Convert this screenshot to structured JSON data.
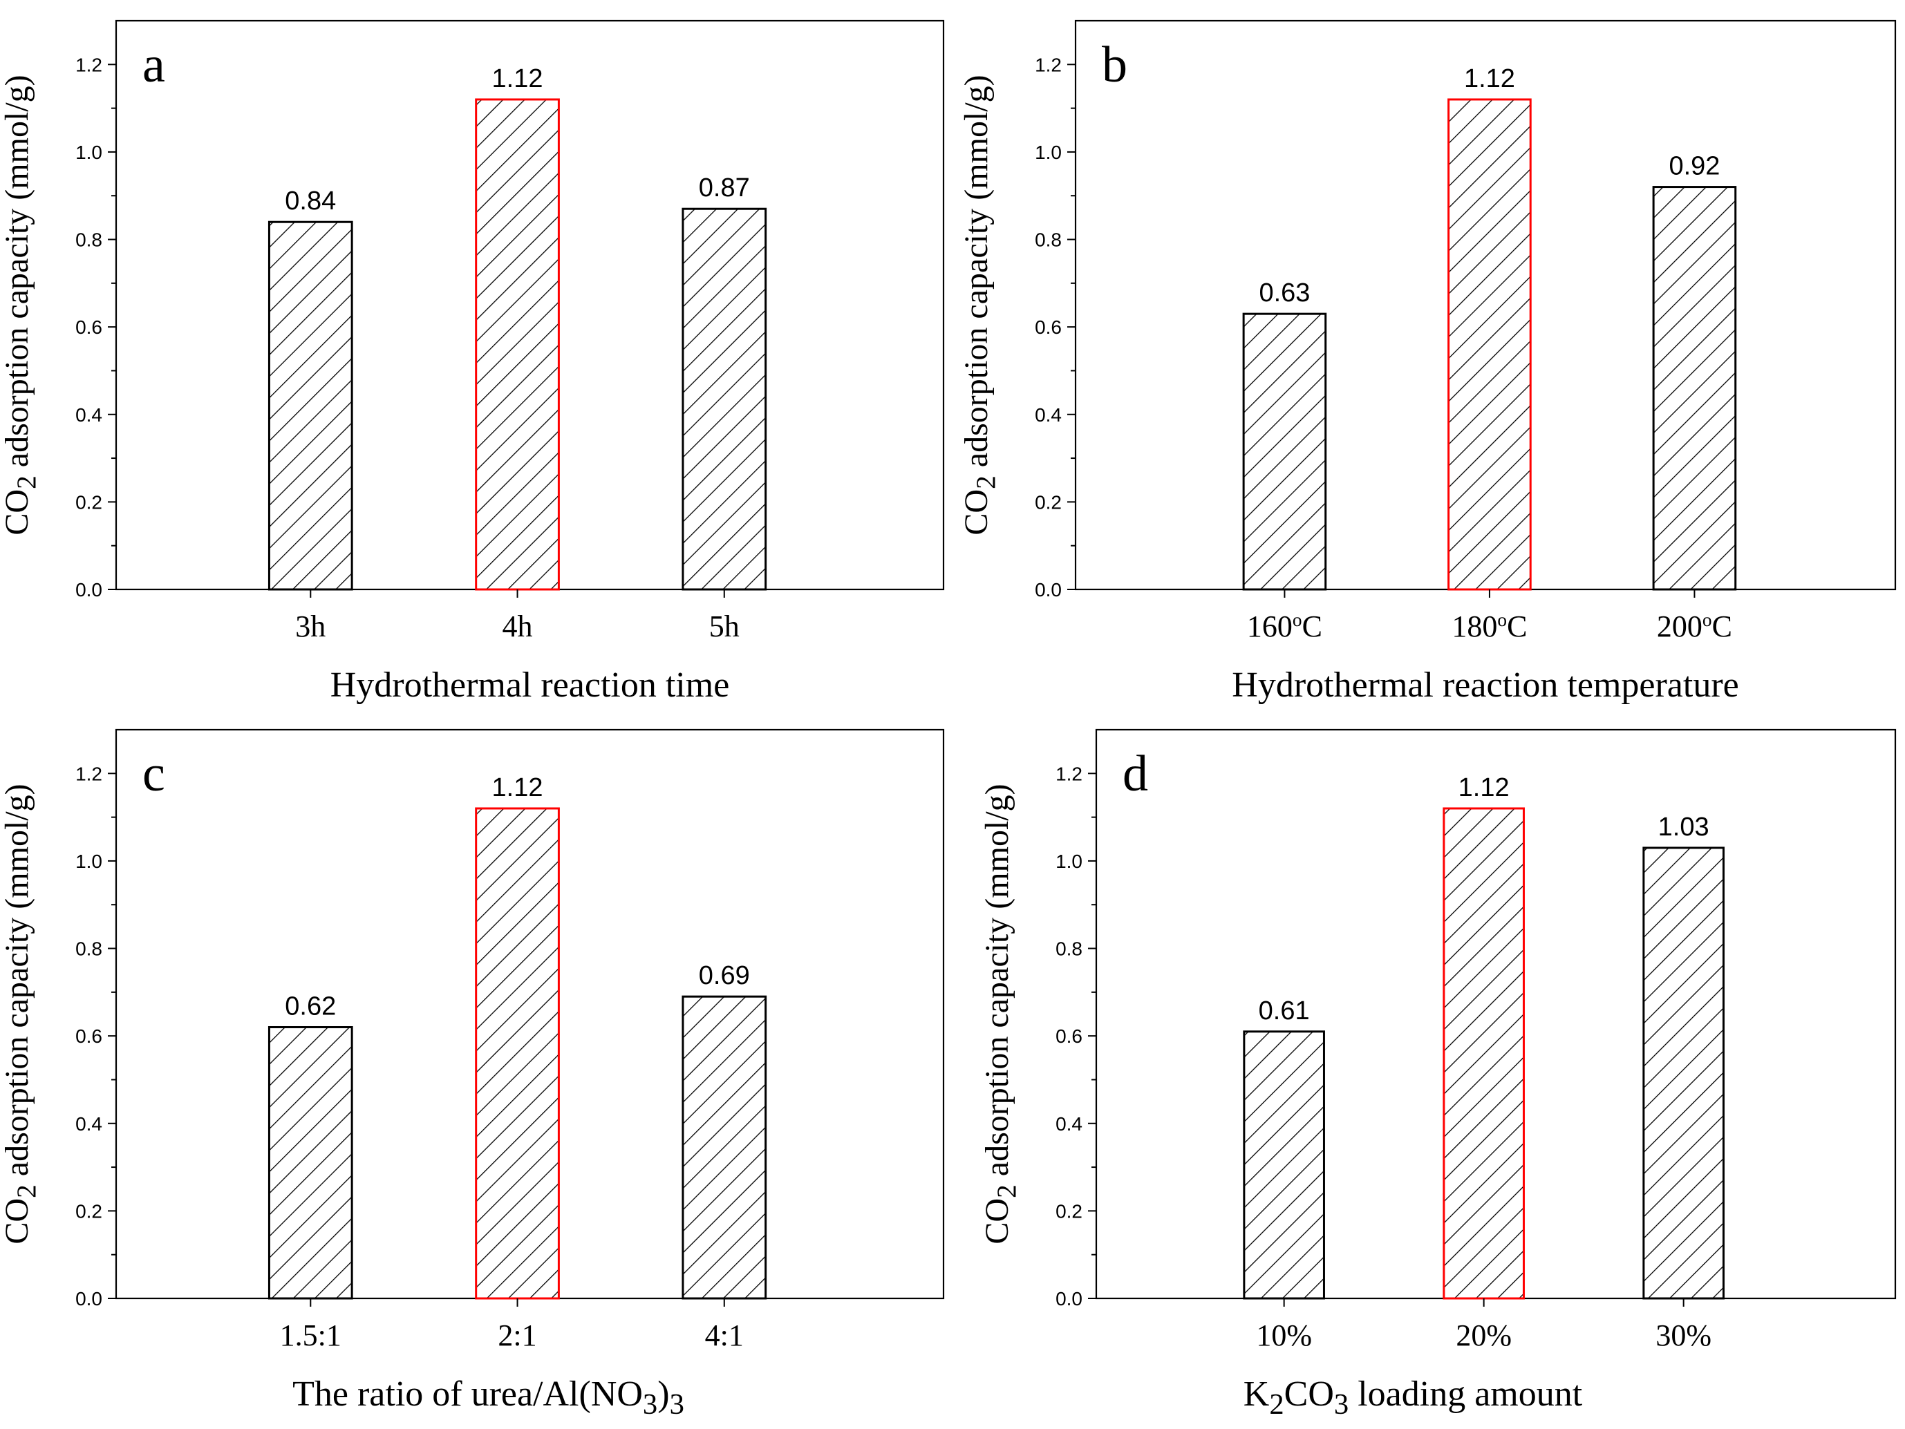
{
  "colors": {
    "bar_edge": "#000000",
    "highlight_edge": "#ff0000",
    "hatch": "#000000",
    "axis": "#000000",
    "background": "#ffffff"
  },
  "chart_data": [
    {
      "type": "bar",
      "panel_letter": "a",
      "title": "",
      "categories": [
        "3h",
        "4h",
        "5h"
      ],
      "values": [
        0.84,
        1.12,
        0.87
      ],
      "value_labels": [
        "0.84",
        "1.12",
        "0.87"
      ],
      "highlight": [
        false,
        true,
        false
      ],
      "xlabel": "Hydrothermal reaction time",
      "xlabel_parts": [
        {
          "t": "Hydrothermal reaction time"
        }
      ],
      "ylabel": "CO2 adsorption capacity (mmol/g)",
      "ylabel_parts": [
        {
          "t": "CO"
        },
        {
          "t": "2",
          "sub": true
        },
        {
          "t": " adsorption capacity (mmol/g)"
        }
      ],
      "ylim": [
        0,
        1.3
      ],
      "yticks": [
        "0.0",
        "0.2",
        "0.4",
        "0.6",
        "0.8",
        "1.0",
        "1.2"
      ],
      "grid": false
    },
    {
      "type": "bar",
      "panel_letter": "b",
      "title": "",
      "categories": [
        "160°C",
        "180°C",
        "200°C"
      ],
      "category_parts": [
        [
          {
            "t": "160"
          },
          {
            "t": "o",
            "sup": true
          },
          {
            "t": "C"
          }
        ],
        [
          {
            "t": "180"
          },
          {
            "t": "o",
            "sup": true
          },
          {
            "t": "C"
          }
        ],
        [
          {
            "t": "200"
          },
          {
            "t": "o",
            "sup": true
          },
          {
            "t": "C"
          }
        ]
      ],
      "values": [
        0.63,
        1.12,
        0.92
      ],
      "value_labels": [
        "0.63",
        "1.12",
        "0.92"
      ],
      "highlight": [
        false,
        true,
        false
      ],
      "xlabel": "Hydrothermal reaction temperature",
      "xlabel_parts": [
        {
          "t": "Hydrothermal reaction temperature"
        }
      ],
      "ylabel": "CO2 adsorption capacity (mmol/g)",
      "ylabel_parts": [
        {
          "t": "CO"
        },
        {
          "t": "2",
          "sub": true
        },
        {
          "t": " adsorption capacity (mmol/g)"
        }
      ],
      "ylim": [
        0,
        1.3
      ],
      "yticks": [
        "0.0",
        "0.2",
        "0.4",
        "0.6",
        "0.8",
        "1.0",
        "1.2"
      ],
      "grid": false
    },
    {
      "type": "bar",
      "panel_letter": "c",
      "title": "",
      "categories": [
        "1.5:1",
        "2:1",
        "4:1"
      ],
      "values": [
        0.62,
        1.12,
        0.69
      ],
      "value_labels": [
        "0.62",
        "1.12",
        "0.69"
      ],
      "highlight": [
        false,
        true,
        false
      ],
      "xlabel": "The ratio of urea/Al(NO3)3",
      "xlabel_parts": [
        {
          "t": "The ratio of urea/Al(NO"
        },
        {
          "t": "3",
          "sub": true
        },
        {
          "t": ")"
        },
        {
          "t": "3",
          "sub": true
        }
      ],
      "ylabel": "CO2 adsorption capacity (mmol/g)",
      "ylabel_parts": [
        {
          "t": "CO"
        },
        {
          "t": "2",
          "sub": true
        },
        {
          "t": " adsorption capacity (mmol/g)"
        }
      ],
      "ylim": [
        0,
        1.3
      ],
      "yticks": [
        "0.0",
        "0.2",
        "0.4",
        "0.6",
        "0.8",
        "1.0",
        "1.2"
      ],
      "grid": false
    },
    {
      "type": "bar",
      "panel_letter": "d",
      "title": "",
      "categories": [
        "10%",
        "20%",
        "30%"
      ],
      "values": [
        0.61,
        1.12,
        1.03
      ],
      "value_labels": [
        "0.61",
        "1.12",
        "1.03"
      ],
      "highlight": [
        false,
        true,
        false
      ],
      "xlabel": "K2CO3 loading amount",
      "xlabel_parts": [
        {
          "t": "K"
        },
        {
          "t": "2",
          "sub": true
        },
        {
          "t": "CO"
        },
        {
          "t": "3",
          "sub": true
        },
        {
          "t": " loading amount"
        }
      ],
      "ylabel": "CO2 adsorption capacity (mmol/g)",
      "ylabel_parts": [
        {
          "t": "CO"
        },
        {
          "t": "2",
          "sub": true
        },
        {
          "t": " adsorption capacity (mmol/g)"
        }
      ],
      "ylim": [
        0,
        1.3
      ],
      "yticks": [
        "0.0",
        "0.2",
        "0.4",
        "0.6",
        "0.8",
        "1.0",
        "1.2"
      ],
      "grid": false
    }
  ]
}
